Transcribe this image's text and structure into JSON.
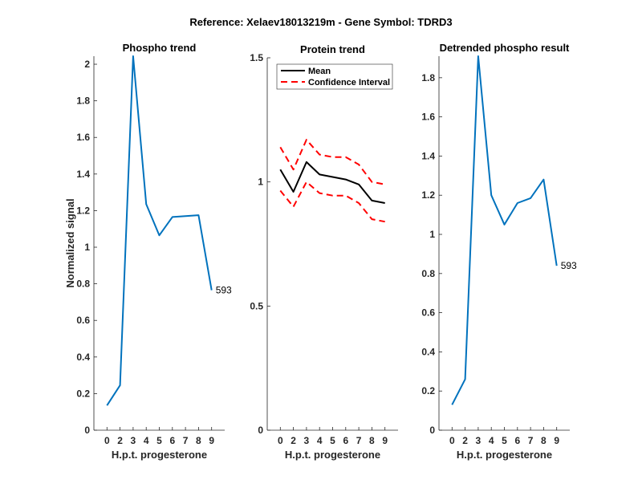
{
  "figure_title": "Reference:  Xelaev18013219m - Gene Symbol:  TDRD3",
  "chart_data": [
    {
      "type": "line",
      "title": "Phospho trend",
      "xlabel": "H.p.t. progesterone",
      "ylabel": "Normalized signal",
      "categories": [
        "0",
        "2",
        "3",
        "4",
        "5",
        "6",
        "7",
        "8",
        "9"
      ],
      "ylim": [
        0,
        2.044
      ],
      "yticks": [
        0,
        0.2,
        0.4,
        0.6,
        0.8,
        1,
        1.2,
        1.4,
        1.6,
        1.8,
        2
      ],
      "ytick_labels": [
        "0",
        "0.2",
        "0.4",
        "0.6",
        "0.8",
        "1",
        "1.2",
        "1.4",
        "1.6",
        "1.8",
        "2"
      ],
      "series": [
        {
          "values": [
            0.135,
            0.245,
            2.044,
            1.235,
            1.065,
            1.165,
            1.17,
            1.175,
            0.765
          ],
          "color": "#0072BD",
          "style": "solid"
        }
      ],
      "annotation": "593"
    },
    {
      "type": "line",
      "title": "Protein trend",
      "xlabel": "H.p.t. progesterone",
      "ylabel": "",
      "categories": [
        "0",
        "2",
        "3",
        "4",
        "5",
        "6",
        "7",
        "8",
        "9"
      ],
      "ylim": [
        0,
        1.5
      ],
      "yticks": [
        0,
        0.5,
        1,
        1.5
      ],
      "ytick_labels": [
        "0",
        "0.5",
        "1",
        "1.5"
      ],
      "legend": {
        "placement": "top-left",
        "entries": [
          "Mean",
          "Confidence Interval"
        ]
      },
      "series": [
        {
          "name": "Mean",
          "values": [
            1.05,
            0.96,
            1.08,
            1.03,
            1.02,
            1.01,
            0.99,
            0.925,
            0.915
          ],
          "color": "#000000",
          "style": "solid"
        },
        {
          "name": "Confidence Interval",
          "values": [
            1.14,
            1.05,
            1.17,
            1.11,
            1.1,
            1.1,
            1.07,
            1.0,
            0.99
          ],
          "color": "#FF0000",
          "style": "dashed"
        },
        {
          "values": [
            0.965,
            0.9,
            1.0,
            0.955,
            0.945,
            0.945,
            0.915,
            0.85,
            0.84
          ],
          "color": "#FF0000",
          "style": "dashed"
        }
      ]
    },
    {
      "type": "line",
      "title": "Detrended phospho result",
      "xlabel": "H.p.t. progesterone",
      "ylabel": "",
      "categories": [
        "0",
        "2",
        "3",
        "4",
        "5",
        "6",
        "7",
        "8",
        "9"
      ],
      "ylim": [
        0,
        1.91
      ],
      "yticks": [
        0,
        0.2,
        0.4,
        0.6,
        0.8,
        1,
        1.2,
        1.4,
        1.6,
        1.8
      ],
      "ytick_labels": [
        "0",
        "0.2",
        "0.4",
        "0.6",
        "0.8",
        "1",
        "1.2",
        "1.4",
        "1.6",
        "1.8"
      ],
      "series": [
        {
          "values": [
            0.13,
            0.26,
            1.91,
            1.2,
            1.05,
            1.16,
            1.185,
            1.28,
            0.84
          ],
          "color": "#0072BD",
          "style": "solid"
        }
      ],
      "annotation": "593"
    }
  ]
}
